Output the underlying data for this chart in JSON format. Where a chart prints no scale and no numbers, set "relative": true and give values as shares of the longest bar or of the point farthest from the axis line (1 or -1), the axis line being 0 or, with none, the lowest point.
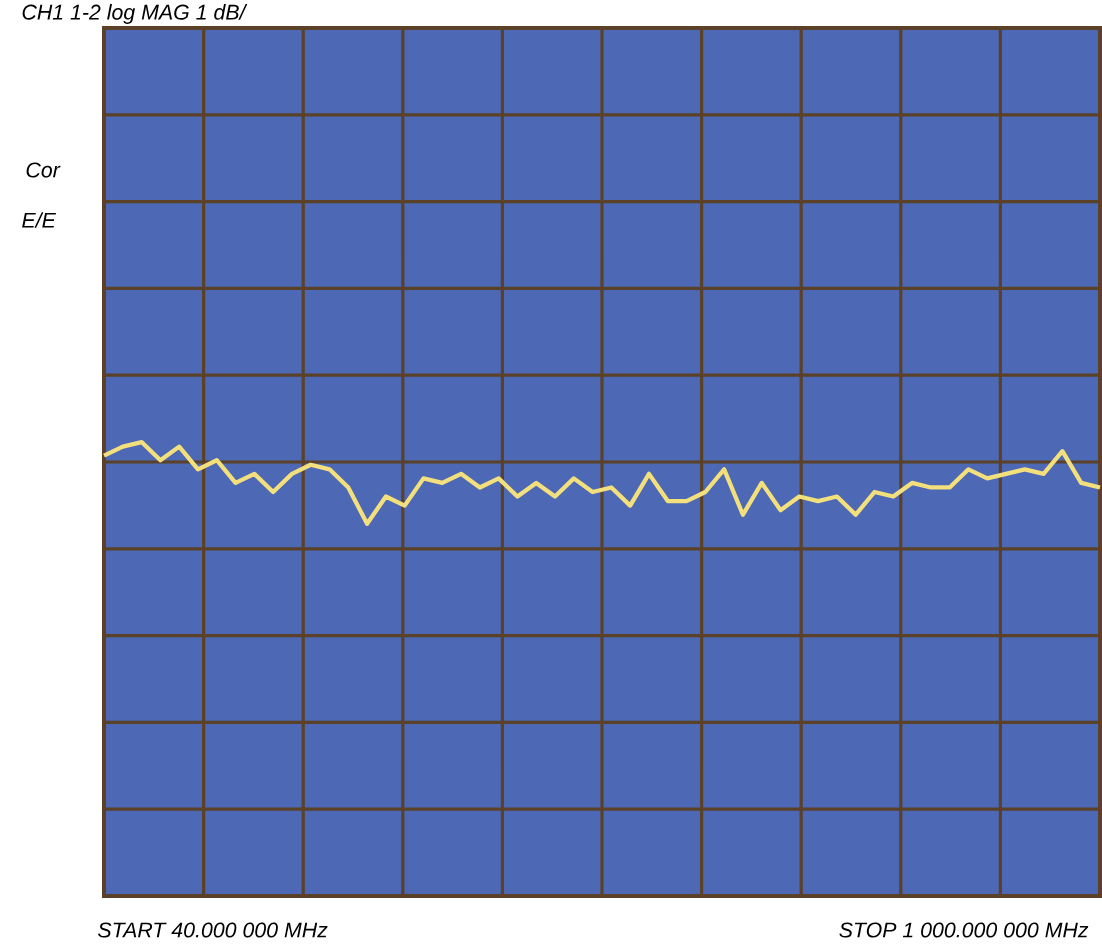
{
  "chart_data": {
    "type": "line",
    "title": "CH1 1-2      log MAG        1 dB/",
    "annotations": [
      "Cor",
      "E/E",
      "START     40.000 000 MHz",
      "STOP  1  000.000  000  MHz"
    ],
    "relative": true,
    "grid": true,
    "color": "#f3e07c",
    "categories": [
      null,
      null,
      null,
      null,
      null,
      null,
      null,
      null,
      null,
      null,
      null,
      null,
      null,
      null,
      null,
      null,
      null,
      null,
      null,
      null,
      null,
      null,
      null,
      null,
      null,
      null,
      null,
      null,
      null,
      null,
      null,
      null,
      null,
      null,
      null,
      null,
      null,
      null,
      null,
      null,
      null,
      null,
      null,
      null,
      null,
      null,
      null,
      null,
      null,
      null,
      null,
      null,
      null,
      null
    ],
    "values": [
      0.97,
      0.99,
      1,
      0.96,
      0.99,
      0.94,
      0.96,
      0.91,
      0.93,
      0.89,
      0.93,
      0.95,
      0.94,
      0.9,
      0.82,
      0.88,
      0.86,
      0.92,
      0.91,
      0.93,
      0.9,
      0.92,
      0.88,
      0.91,
      0.88,
      0.92,
      0.89,
      0.9,
      0.86,
      0.93,
      0.87,
      0.87,
      0.89,
      0.94,
      0.84,
      0.91,
      0.85,
      0.88,
      0.87,
      0.88,
      0.84,
      0.89,
      0.88,
      0.91,
      0.9,
      0.9,
      0.94,
      0.92,
      0.93,
      0.94,
      0.93,
      0.98,
      0.91,
      0.9
    ]
  }
}
